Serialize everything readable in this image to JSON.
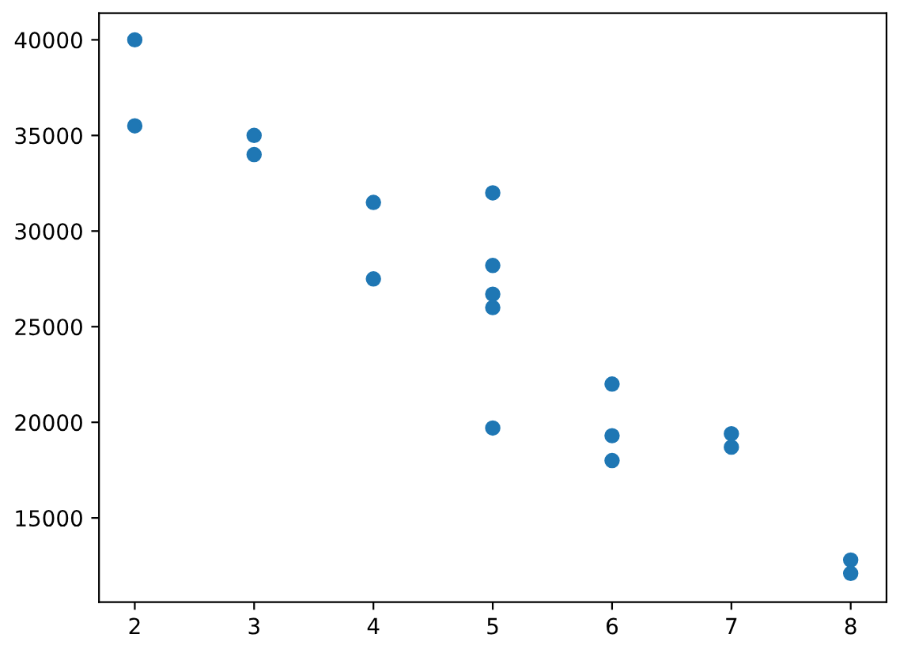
{
  "chart_data": {
    "type": "scatter",
    "color": "#1f77b4",
    "marker": "circle",
    "grid": false,
    "x": [
      2,
      2,
      3,
      3,
      4,
      4,
      5,
      5,
      5,
      5,
      5,
      6,
      6,
      6,
      7,
      7,
      8,
      8
    ],
    "values": [
      40000,
      35500,
      35000,
      34000,
      31500,
      27500,
      32000,
      28200,
      26700,
      26000,
      19700,
      22000,
      19300,
      18000,
      19400,
      18700,
      12800,
      12100
    ],
    "xlim": [
      1.7,
      8.3
    ],
    "ylim": [
      10600,
      41400
    ],
    "xticks": [
      2,
      3,
      4,
      5,
      6,
      7,
      8
    ],
    "yticks": [
      15000,
      20000,
      25000,
      30000,
      35000,
      40000
    ]
  }
}
